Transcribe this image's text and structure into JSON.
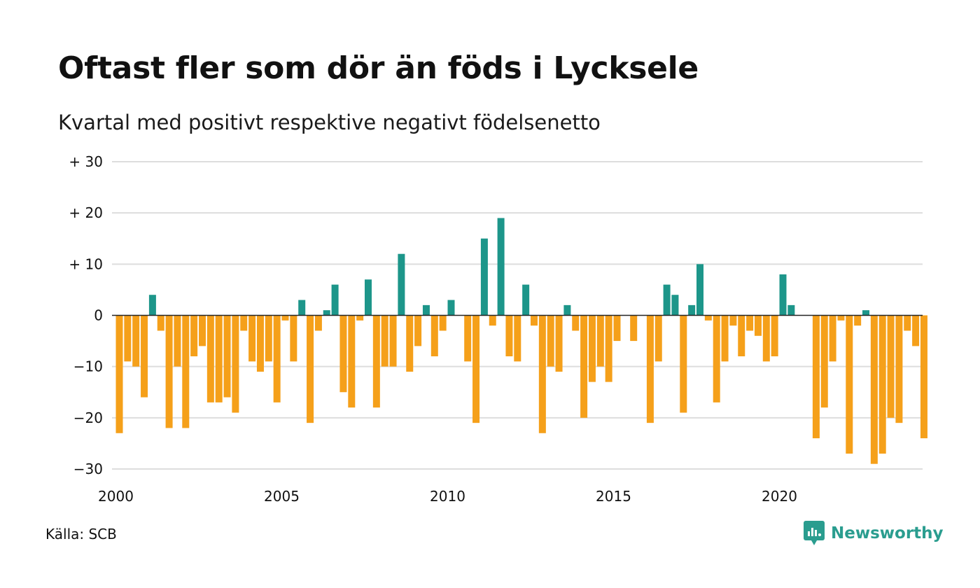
{
  "title": "Oftast fler som dör än föds i Lycksele",
  "subtitle": "Kvartal med positivt respektive negativt födelsenetto",
  "source": "Källa: SCB",
  "brand": {
    "name": "Newsworthy",
    "color": "#2a9d8f",
    "icon": "newsworthy-logo-icon"
  },
  "colors": {
    "positive": "#1d968a",
    "negative": "#f5a01a",
    "grid": "#dddddd",
    "zero_line": "#222222"
  },
  "chart_data": {
    "type": "bar",
    "x_start": 2000,
    "x_step": 0.25,
    "xlim": [
      2000,
      2024.5
    ],
    "ylim": [
      -30,
      30
    ],
    "y_ticks": [
      30,
      20,
      10,
      0,
      -10,
      -20,
      -30
    ],
    "y_tick_labels": [
      "+ 30",
      "+ 20",
      "+ 10",
      "0",
      "−10",
      "−20",
      "−30"
    ],
    "x_ticks": [
      2000,
      2005,
      2010,
      2015,
      2020
    ],
    "x_tick_labels": [
      "2000",
      "2005",
      "2010",
      "2015",
      "2020"
    ],
    "grid": true,
    "legend": "none",
    "values": [
      -23,
      -9,
      -10,
      -16,
      4,
      -3,
      -22,
      -10,
      -22,
      -8,
      -6,
      -17,
      -17,
      -16,
      -19,
      -3,
      -9,
      -11,
      -9,
      -17,
      -1,
      -9,
      3,
      -21,
      -3,
      1,
      6,
      -15,
      -18,
      -1,
      7,
      -18,
      -10,
      -10,
      12,
      -11,
      -6,
      2,
      -8,
      -3,
      3,
      0,
      -9,
      -21,
      15,
      -2,
      19,
      -8,
      -9,
      6,
      -2,
      -23,
      -10,
      -11,
      2,
      -3,
      -20,
      -13,
      -10,
      -13,
      -5,
      0,
      -5,
      0,
      -21,
      -9,
      6,
      4,
      -19,
      2,
      10,
      -1,
      -17,
      -9,
      -2,
      -8,
      -3,
      -4,
      -9,
      -8,
      8,
      2,
      0,
      0,
      -24,
      -18,
      -9,
      -1,
      -27,
      -2,
      1,
      -29,
      -27,
      -20,
      -21,
      -3,
      -6,
      -24
    ]
  }
}
